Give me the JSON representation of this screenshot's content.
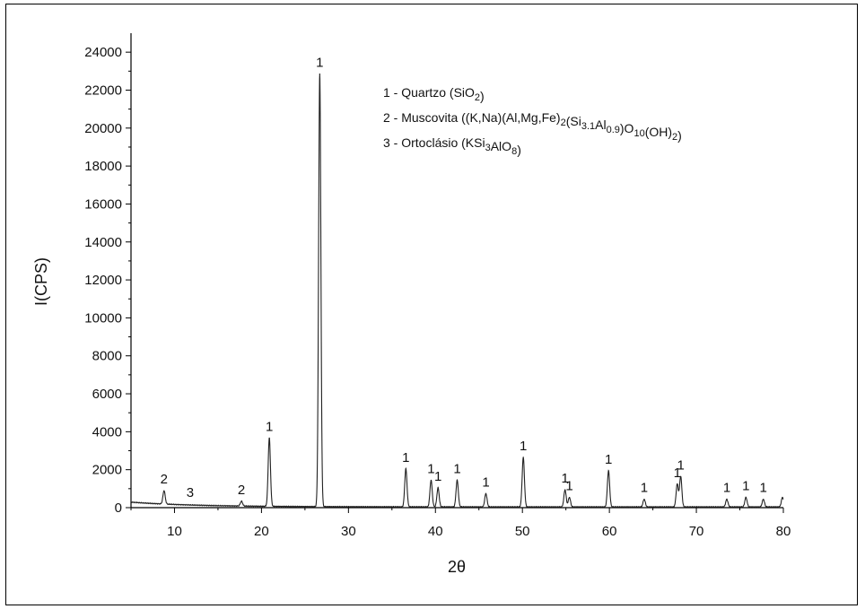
{
  "chart_data": {
    "type": "line",
    "xlabel": "2θ",
    "ylabel": "I(CPS)",
    "xlim": [
      5,
      80
    ],
    "ylim": [
      0,
      25000
    ],
    "x_ticks": [
      10,
      20,
      30,
      40,
      50,
      60,
      70,
      80
    ],
    "y_ticks": [
      0,
      2000,
      4000,
      6000,
      8000,
      10000,
      12000,
      14000,
      16000,
      18000,
      20000,
      22000,
      24000
    ],
    "grid": false,
    "legend_position": "top-right",
    "legend": [
      {
        "id": "1",
        "text": "1 - Quartzo (SiO2)",
        "parts": [
          {
            "t": "1 - Quartzo (SiO",
            "s": ""
          },
          {
            "t": "2",
            "s": "sub"
          },
          {
            "t": ")",
            "s": ""
          }
        ]
      },
      {
        "id": "2",
        "text": "2 - Muscovita ((K,Na)(Al,Mg,Fe)2(Si3.1Al0.9)O10(OH)2)",
        "parts": [
          {
            "t": "2 - Muscovita ((K,Na)(Al,Mg,Fe)",
            "s": ""
          },
          {
            "t": "2",
            "s": "sub"
          },
          {
            "t": "(Si",
            "s": ""
          },
          {
            "t": "3.1",
            "s": "sub"
          },
          {
            "t": "Al",
            "s": ""
          },
          {
            "t": "0.9",
            "s": "sub"
          },
          {
            "t": ")O",
            "s": ""
          },
          {
            "t": "10",
            "s": "sub"
          },
          {
            "t": "(OH)",
            "s": ""
          },
          {
            "t": "2",
            "s": "sub"
          },
          {
            "t": ")",
            "s": ""
          }
        ]
      },
      {
        "id": "3",
        "text": "3 - Ortoclásio (KSi3AlO8)",
        "parts": [
          {
            "t": "3 - Ortoclásio (KSi",
            "s": ""
          },
          {
            "t": "3",
            "s": "sub"
          },
          {
            "t": "AlO",
            "s": ""
          },
          {
            "t": "8",
            "s": "sub"
          },
          {
            "t": ")",
            "s": ""
          }
        ]
      }
    ],
    "baseline": {
      "start": 250,
      "end": 40
    },
    "peaks": [
      {
        "x": 8.8,
        "y": 700,
        "label": "2"
      },
      {
        "x": 11.8,
        "y": 0,
        "label": "3"
      },
      {
        "x": 17.7,
        "y": 250,
        "label": "2"
      },
      {
        "x": 20.9,
        "y": 3600,
        "label": "1"
      },
      {
        "x": 26.7,
        "y": 22800,
        "label": "1"
      },
      {
        "x": 36.6,
        "y": 2000,
        "label": "1"
      },
      {
        "x": 39.5,
        "y": 1400,
        "label": "1"
      },
      {
        "x": 40.3,
        "y": 1000,
        "label": "1"
      },
      {
        "x": 42.5,
        "y": 1400,
        "label": "1"
      },
      {
        "x": 45.8,
        "y": 700,
        "label": "1"
      },
      {
        "x": 50.1,
        "y": 2600,
        "label": "1"
      },
      {
        "x": 54.9,
        "y": 900,
        "label": "1"
      },
      {
        "x": 55.4,
        "y": 500,
        "label": "1"
      },
      {
        "x": 59.9,
        "y": 1900,
        "label": "1"
      },
      {
        "x": 64.0,
        "y": 400,
        "label": "1"
      },
      {
        "x": 67.8,
        "y": 1200,
        "label": "1"
      },
      {
        "x": 68.2,
        "y": 1600,
        "label": "1"
      },
      {
        "x": 73.5,
        "y": 400,
        "label": "1"
      },
      {
        "x": 75.7,
        "y": 500,
        "label": "1"
      },
      {
        "x": 77.7,
        "y": 400,
        "label": "1"
      },
      {
        "x": 79.9,
        "y": 500,
        "label": ""
      }
    ]
  }
}
